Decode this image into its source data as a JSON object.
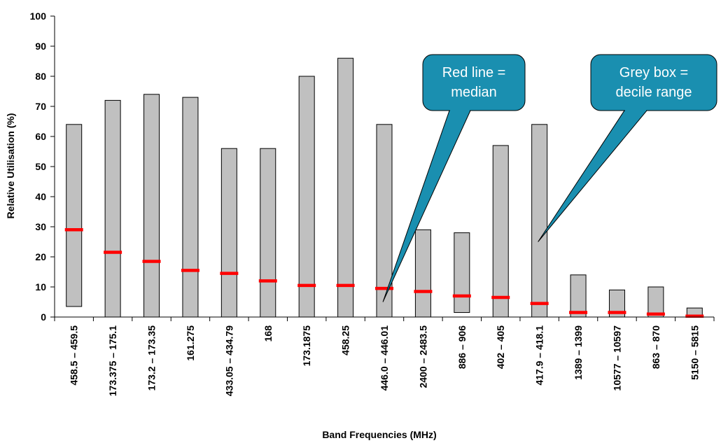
{
  "chart_data": {
    "type": "bar",
    "subtype": "floating range bars with median markers",
    "xlabel": "Band Frequencies (MHz)",
    "ylabel": "Relative Utilisation (%)",
    "ylim": [
      0,
      100
    ],
    "yticks": [
      0,
      10,
      20,
      30,
      40,
      50,
      60,
      70,
      80,
      90,
      100
    ],
    "grid": false,
    "categories": [
      "458.5 – 459.5",
      "173.375 – 175.1",
      "173.2 – 173.35",
      "161.275",
      "433.05 – 434.79",
      "168",
      "173.1875",
      "458.25",
      "446.0 – 446.01",
      "2400 – 2483.5",
      "886 – 906",
      "402 – 405",
      "417.9 – 418.1",
      "1389 – 1399",
      "10577 – 10597",
      "863 – 870",
      "5150 – 5815"
    ],
    "series": [
      {
        "name": "decile_low",
        "values": [
          3.5,
          0,
          0,
          0,
          0,
          0,
          0,
          0,
          0,
          0,
          1.5,
          0,
          0,
          0,
          0,
          0,
          0
        ]
      },
      {
        "name": "decile_high",
        "values": [
          64,
          72,
          74,
          73,
          56,
          56,
          80,
          86,
          64,
          29,
          28,
          57,
          64,
          14,
          9,
          10,
          3
        ]
      },
      {
        "name": "median",
        "values": [
          29,
          21.5,
          18.5,
          15.5,
          14.5,
          12,
          10.5,
          10.5,
          9.5,
          8.5,
          7,
          6.5,
          4.5,
          1.5,
          1.5,
          1,
          0.3
        ]
      }
    ],
    "colors": {
      "box_fill": "#c0c0c0",
      "box_stroke": "#000000",
      "median": "#ff0000",
      "callout_fill": "#1a8fb0",
      "callout_text": "#ffffff"
    },
    "annotations": [
      {
        "text_lines": [
          "Red line =",
          "median"
        ],
        "points_to_category": "446.0 – 446.01",
        "points_to_value": 5
      },
      {
        "text_lines": [
          "Grey box =",
          "decile range"
        ],
        "points_to_category": "417.9 – 418.1",
        "points_to_value": 25
      }
    ]
  }
}
